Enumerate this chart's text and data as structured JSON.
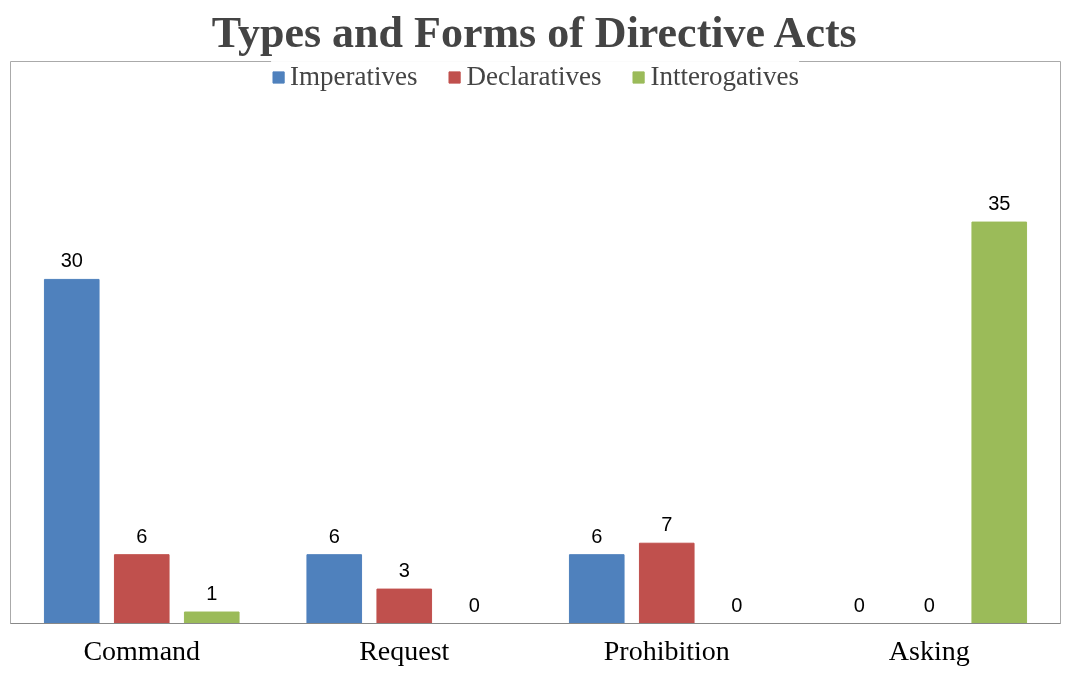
{
  "chart_data": {
    "type": "bar",
    "title": "Types and Forms of Directive Acts",
    "categories": [
      "Command",
      "Request",
      "Prohibition",
      "Asking"
    ],
    "series": [
      {
        "name": "Imperatives",
        "color": "#4f81bd",
        "values": [
          30,
          6,
          6,
          0
        ]
      },
      {
        "name": "Declaratives",
        "color": "#c0504d",
        "values": [
          6,
          3,
          7,
          0
        ]
      },
      {
        "name": "Intterogatives",
        "color": "#9bbb59",
        "values": [
          1,
          0,
          0,
          35
        ]
      }
    ],
    "data_labels": true,
    "legend": "top",
    "grid": false
  }
}
